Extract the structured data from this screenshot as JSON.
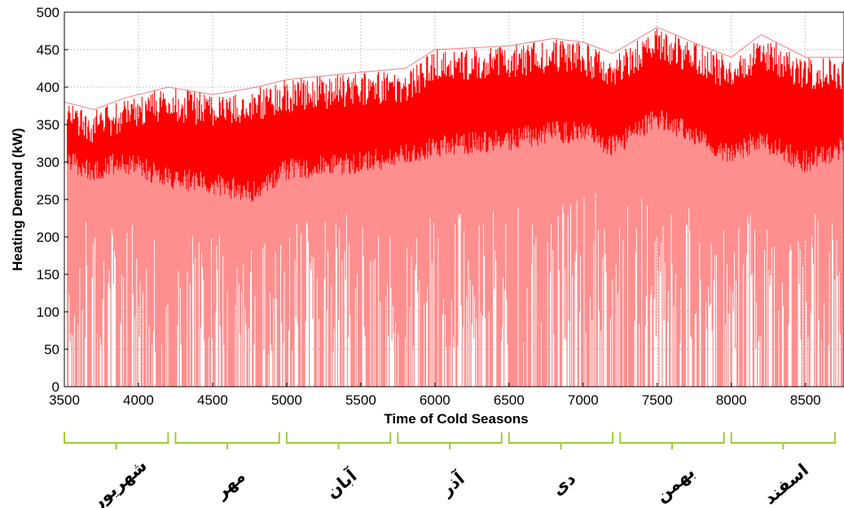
{
  "chart_data": {
    "type": "line",
    "title": "",
    "xlabel": "Time of Cold Seasons",
    "ylabel": "Heating Demand (kW)",
    "xlim": [
      3500,
      8760
    ],
    "ylim": [
      0,
      500
    ],
    "xticks": [
      3500,
      4000,
      4500,
      5000,
      5500,
      6000,
      6500,
      7000,
      7500,
      8000,
      8500
    ],
    "yticks": [
      0,
      50,
      100,
      150,
      200,
      250,
      300,
      350,
      400,
      450,
      500
    ],
    "grid": "dotted",
    "series": [
      {
        "color": "#ff0000",
        "description_points": {
          "x": [
            3500,
            3700,
            3900,
            4200,
            4500,
            4800,
            5000,
            5500,
            5800,
            6000,
            6500,
            6800,
            7000,
            7200,
            7500,
            7800,
            8000,
            8200,
            8500,
            8760
          ],
          "peak": [
            380,
            370,
            385,
            400,
            390,
            400,
            410,
            420,
            425,
            450,
            455,
            465,
            460,
            445,
            480,
            455,
            440,
            470,
            440,
            440
          ],
          "trough": [
            300,
            290,
            300,
            280,
            270,
            260,
            290,
            300,
            310,
            320,
            330,
            340,
            340,
            320,
            360,
            330,
            310,
            330,
            300,
            320
          ]
        }
      }
    ],
    "month_groups": [
      {
        "label": "شهریور",
        "x_start": 3500,
        "x_end": 4200
      },
      {
        "label": "مهر",
        "x_start": 4250,
        "x_end": 4950
      },
      {
        "label": "آبان",
        "x_start": 5000,
        "x_end": 5700
      },
      {
        "label": "آذر",
        "x_start": 5750,
        "x_end": 6450
      },
      {
        "label": "دی",
        "x_start": 6500,
        "x_end": 7200
      },
      {
        "label": "بهمن",
        "x_start": 7250,
        "x_end": 7950
      },
      {
        "label": "اسفند",
        "x_start": 8000,
        "x_end": 8700
      }
    ]
  }
}
